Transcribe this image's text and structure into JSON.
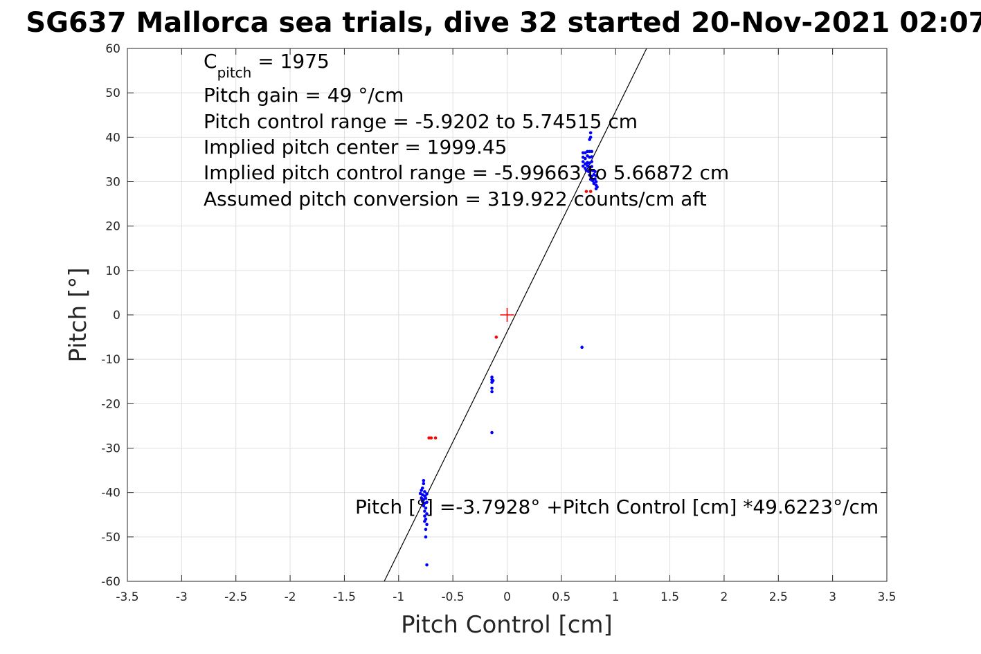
{
  "chart_data": {
    "type": "scatter",
    "title": "SG637 Mallorca sea trials, dive 32 started 20-Nov-2021 02:07",
    "xlabel": "Pitch Control [cm]",
    "ylabel": "Pitch [°]",
    "xlim": [
      -3.5,
      3.5
    ],
    "ylim": [
      -60,
      60
    ],
    "xticks": [
      -3.5,
      -3,
      -2.5,
      -2,
      -1.5,
      -1,
      -0.5,
      0,
      0.5,
      1,
      1.5,
      2,
      2.5,
      3,
      3.5
    ],
    "yticks": [
      -60,
      -50,
      -40,
      -30,
      -20,
      -10,
      0,
      10,
      20,
      30,
      40,
      50,
      60
    ],
    "xtick_labels": [
      "-3.5",
      "-3",
      "-2.5",
      "-2",
      "-1.5",
      "-1",
      "-0.5",
      "0",
      "0.5",
      "1",
      "1.5",
      "2",
      "2.5",
      "3",
      "3.5"
    ],
    "ytick_labels": [
      "-60",
      "-50",
      "-40",
      "-30",
      "-20",
      "-10",
      "0",
      "10",
      "20",
      "30",
      "40",
      "50",
      "60"
    ],
    "grid": true,
    "series": [
      {
        "color": "#0000ff",
        "points": [
          [
            0.77,
            41
          ],
          [
            0.77,
            40
          ],
          [
            0.76,
            39.5
          ],
          [
            0.7,
            36.5
          ],
          [
            0.72,
            36.5
          ],
          [
            0.74,
            36.8
          ],
          [
            0.76,
            36.8
          ],
          [
            0.78,
            36.8
          ],
          [
            0.7,
            35.5
          ],
          [
            0.72,
            35.2
          ],
          [
            0.74,
            35.8
          ],
          [
            0.76,
            35.5
          ],
          [
            0.78,
            35.6
          ],
          [
            0.7,
            34.5
          ],
          [
            0.72,
            34
          ],
          [
            0.74,
            34.3
          ],
          [
            0.76,
            34.2
          ],
          [
            0.78,
            34.5
          ],
          [
            0.7,
            33.5
          ],
          [
            0.72,
            33
          ],
          [
            0.74,
            33.6
          ],
          [
            0.76,
            33.2
          ],
          [
            0.78,
            33.4
          ],
          [
            0.73,
            32.5
          ],
          [
            0.75,
            32.3
          ],
          [
            0.77,
            32.6
          ],
          [
            0.79,
            32.5
          ],
          [
            0.81,
            32.3
          ],
          [
            0.76,
            31.5
          ],
          [
            0.78,
            31.2
          ],
          [
            0.8,
            31.6
          ],
          [
            0.82,
            31.3
          ],
          [
            0.77,
            30.5
          ],
          [
            0.79,
            30.2
          ],
          [
            0.81,
            30.6
          ],
          [
            0.82,
            30.0
          ],
          [
            0.8,
            29.6
          ],
          [
            0.82,
            29.2
          ],
          [
            0.83,
            28.8
          ],
          [
            0.82,
            28.4
          ],
          [
            0.69,
            -7.3
          ],
          [
            -0.14,
            -14
          ],
          [
            -0.14,
            -14.6
          ],
          [
            -0.14,
            -15.2
          ],
          [
            -0.13,
            -14.8
          ],
          [
            -0.14,
            -16.5
          ],
          [
            -0.14,
            -17.3
          ],
          [
            -0.14,
            -26.5
          ],
          [
            -0.77,
            -37.3
          ],
          [
            -0.77,
            -38.0
          ],
          [
            -0.78,
            -39.0
          ],
          [
            -0.79,
            -39.5
          ],
          [
            -0.76,
            -39.8
          ],
          [
            -0.8,
            -40.2
          ],
          [
            -0.78,
            -40.5
          ],
          [
            -0.76,
            -40.8
          ],
          [
            -0.74,
            -40.3
          ],
          [
            -0.79,
            -41.2
          ],
          [
            -0.77,
            -41.6
          ],
          [
            -0.75,
            -41.3
          ],
          [
            -0.78,
            -42.0
          ],
          [
            -0.76,
            -42.4
          ],
          [
            -0.74,
            -42.2
          ],
          [
            -0.77,
            -43.0
          ],
          [
            -0.75,
            -43.5
          ],
          [
            -0.76,
            -44.2
          ],
          [
            -0.74,
            -44.8
          ],
          [
            -0.76,
            -45.3
          ],
          [
            -0.75,
            -46.0
          ],
          [
            -0.76,
            -46.5
          ],
          [
            -0.74,
            -47.2
          ],
          [
            -0.75,
            -48.3
          ],
          [
            -0.75,
            -50.0
          ],
          [
            -0.74,
            -56.3
          ]
        ]
      },
      {
        "color": "#ff0000",
        "points": [
          [
            -0.72,
            -27.7
          ],
          [
            -0.7,
            -27.7
          ],
          [
            -0.66,
            -27.7
          ],
          [
            -0.1,
            -5.0
          ],
          [
            0.73,
            27.8
          ],
          [
            0.77,
            27.8
          ]
        ]
      }
    ],
    "fit": {
      "intercept": -3.7928,
      "slope": 49.6223,
      "color": "#000000"
    },
    "marker": {
      "x": 0,
      "y": 0,
      "symbol": "+",
      "color": "#ff0000"
    },
    "annotations": {
      "cpitch_main": "C",
      "cpitch_sub": "pitch",
      "cpitch_value": " = 1975",
      "gain": "Pitch gain = 49 °/cm",
      "range": "Pitch control range = -5.9202 to 5.74515 cm",
      "center": "Implied pitch center = 1999.45",
      "implied_range": "Implied pitch control range = -5.99663 to 5.66872 cm",
      "conversion": "Assumed pitch conversion = 319.922 counts/cm aft",
      "equation": "Pitch [°] =-3.7928° +Pitch Control [cm] *49.6223°/cm"
    }
  }
}
